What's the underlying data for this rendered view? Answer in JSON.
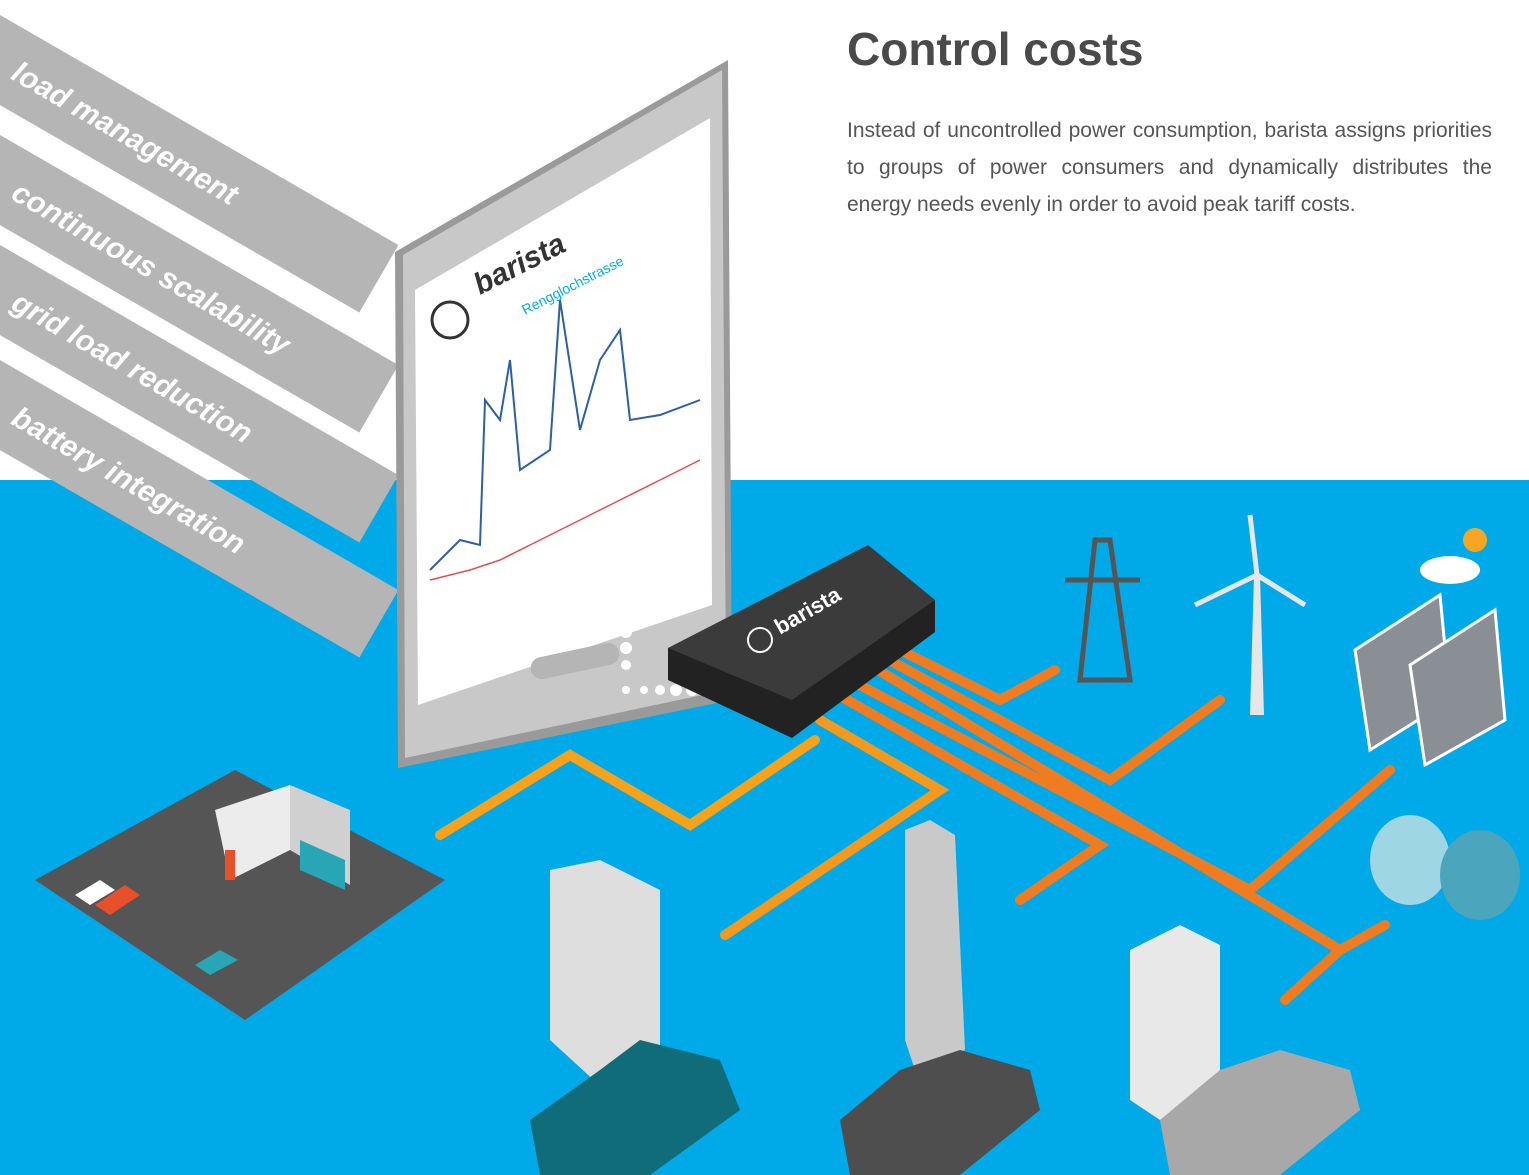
{
  "heading": "Control costs",
  "body": "Instead of uncontrolled power consumption, barista assigns priorities to groups of power consumers and dynamically distributes the energy needs evenly in order to avoid peak tariff costs.",
  "features": [
    "load management",
    "continuous scalability",
    "grid load reduction",
    "battery integration"
  ],
  "tablet": {
    "brand": "barista",
    "location": "Rengglochstrasse"
  },
  "device": {
    "brand": "barista"
  }
}
